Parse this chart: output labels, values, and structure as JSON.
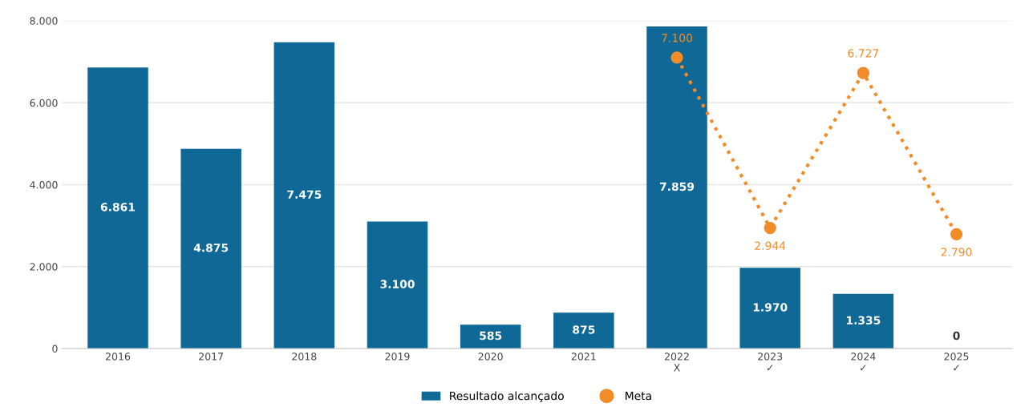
{
  "chart_data": {
    "type": "bar",
    "categories": [
      "2016",
      "2017",
      "2018",
      "2019",
      "2020",
      "2021",
      "2022\nX",
      "2023\n✓",
      "2024\n✓",
      "2025\n✓"
    ],
    "series": [
      {
        "name": "Resultado alcançado",
        "color": "#0f6896",
        "values": [
          6861,
          4875,
          7475,
          3100,
          585,
          875,
          7859,
          1970,
          1335,
          0
        ],
        "value_labels": [
          "6.861",
          "4.875",
          "7.475",
          "3.100",
          "585",
          "875",
          "7.859",
          "1.970",
          "1.335",
          "0"
        ]
      },
      {
        "name": "Meta",
        "type": "line",
        "color": "#f28c28",
        "marker": "circle",
        "line_style": "dotted",
        "values": [
          null,
          null,
          null,
          null,
          null,
          null,
          7100,
          2944,
          6727,
          2790
        ],
        "value_labels": [
          null,
          null,
          null,
          null,
          null,
          null,
          "7.100",
          "2.944",
          "6.727",
          "2.790"
        ]
      }
    ],
    "ylim": [
      0,
      8000
    ],
    "yticks": [
      {
        "value": 0,
        "label": "0"
      },
      {
        "value": 2000,
        "label": "2.000"
      },
      {
        "value": 4000,
        "label": "4.000"
      },
      {
        "value": 6000,
        "label": "6.000"
      },
      {
        "value": 8000,
        "label": "8.000"
      }
    ],
    "grid": "y",
    "legend": "bottom"
  }
}
